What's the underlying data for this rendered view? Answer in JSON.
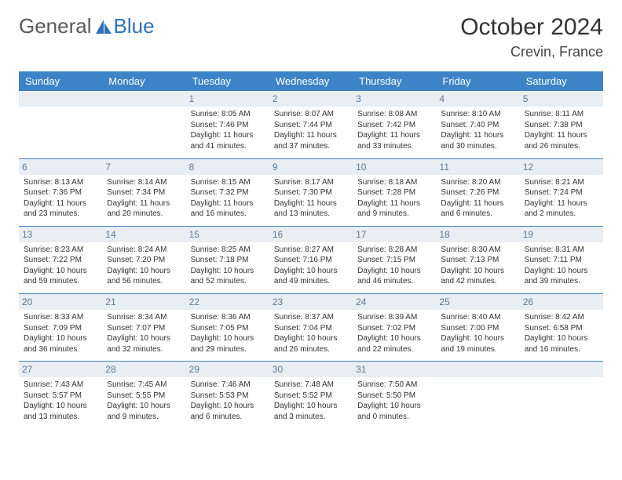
{
  "brand": {
    "part1": "General",
    "part2": "Blue"
  },
  "title": {
    "month": "October 2024",
    "location": "Crevin, France"
  },
  "calendar": {
    "type": "table",
    "header_bg": "#3d84c6",
    "header_fg": "#ffffff",
    "daynum_bg": "#e9eef3",
    "daynum_fg": "#5a7a96",
    "rule_color": "#3d84c6",
    "columns": [
      "Sunday",
      "Monday",
      "Tuesday",
      "Wednesday",
      "Thursday",
      "Friday",
      "Saturday"
    ],
    "weeks": [
      [
        null,
        null,
        {
          "d": "1",
          "sr": "8:05 AM",
          "ss": "7:46 PM",
          "dl": "11 hours and 41 minutes."
        },
        {
          "d": "2",
          "sr": "8:07 AM",
          "ss": "7:44 PM",
          "dl": "11 hours and 37 minutes."
        },
        {
          "d": "3",
          "sr": "8:08 AM",
          "ss": "7:42 PM",
          "dl": "11 hours and 33 minutes."
        },
        {
          "d": "4",
          "sr": "8:10 AM",
          "ss": "7:40 PM",
          "dl": "11 hours and 30 minutes."
        },
        {
          "d": "5",
          "sr": "8:11 AM",
          "ss": "7:38 PM",
          "dl": "11 hours and 26 minutes."
        }
      ],
      [
        {
          "d": "6",
          "sr": "8:13 AM",
          "ss": "7:36 PM",
          "dl": "11 hours and 23 minutes."
        },
        {
          "d": "7",
          "sr": "8:14 AM",
          "ss": "7:34 PM",
          "dl": "11 hours and 20 minutes."
        },
        {
          "d": "8",
          "sr": "8:15 AM",
          "ss": "7:32 PM",
          "dl": "11 hours and 16 minutes."
        },
        {
          "d": "9",
          "sr": "8:17 AM",
          "ss": "7:30 PM",
          "dl": "11 hours and 13 minutes."
        },
        {
          "d": "10",
          "sr": "8:18 AM",
          "ss": "7:28 PM",
          "dl": "11 hours and 9 minutes."
        },
        {
          "d": "11",
          "sr": "8:20 AM",
          "ss": "7:26 PM",
          "dl": "11 hours and 6 minutes."
        },
        {
          "d": "12",
          "sr": "8:21 AM",
          "ss": "7:24 PM",
          "dl": "11 hours and 2 minutes."
        }
      ],
      [
        {
          "d": "13",
          "sr": "8:23 AM",
          "ss": "7:22 PM",
          "dl": "10 hours and 59 minutes."
        },
        {
          "d": "14",
          "sr": "8:24 AM",
          "ss": "7:20 PM",
          "dl": "10 hours and 56 minutes."
        },
        {
          "d": "15",
          "sr": "8:25 AM",
          "ss": "7:18 PM",
          "dl": "10 hours and 52 minutes."
        },
        {
          "d": "16",
          "sr": "8:27 AM",
          "ss": "7:16 PM",
          "dl": "10 hours and 49 minutes."
        },
        {
          "d": "17",
          "sr": "8:28 AM",
          "ss": "7:15 PM",
          "dl": "10 hours and 46 minutes."
        },
        {
          "d": "18",
          "sr": "8:30 AM",
          "ss": "7:13 PM",
          "dl": "10 hours and 42 minutes."
        },
        {
          "d": "19",
          "sr": "8:31 AM",
          "ss": "7:11 PM",
          "dl": "10 hours and 39 minutes."
        }
      ],
      [
        {
          "d": "20",
          "sr": "8:33 AM",
          "ss": "7:09 PM",
          "dl": "10 hours and 36 minutes."
        },
        {
          "d": "21",
          "sr": "8:34 AM",
          "ss": "7:07 PM",
          "dl": "10 hours and 32 minutes."
        },
        {
          "d": "22",
          "sr": "8:36 AM",
          "ss": "7:05 PM",
          "dl": "10 hours and 29 minutes."
        },
        {
          "d": "23",
          "sr": "8:37 AM",
          "ss": "7:04 PM",
          "dl": "10 hours and 26 minutes."
        },
        {
          "d": "24",
          "sr": "8:39 AM",
          "ss": "7:02 PM",
          "dl": "10 hours and 22 minutes."
        },
        {
          "d": "25",
          "sr": "8:40 AM",
          "ss": "7:00 PM",
          "dl": "10 hours and 19 minutes."
        },
        {
          "d": "26",
          "sr": "8:42 AM",
          "ss": "6:58 PM",
          "dl": "10 hours and 16 minutes."
        }
      ],
      [
        {
          "d": "27",
          "sr": "7:43 AM",
          "ss": "5:57 PM",
          "dl": "10 hours and 13 minutes."
        },
        {
          "d": "28",
          "sr": "7:45 AM",
          "ss": "5:55 PM",
          "dl": "10 hours and 9 minutes."
        },
        {
          "d": "29",
          "sr": "7:46 AM",
          "ss": "5:53 PM",
          "dl": "10 hours and 6 minutes."
        },
        {
          "d": "30",
          "sr": "7:48 AM",
          "ss": "5:52 PM",
          "dl": "10 hours and 3 minutes."
        },
        {
          "d": "31",
          "sr": "7:50 AM",
          "ss": "5:50 PM",
          "dl": "10 hours and 0 minutes."
        },
        null,
        null
      ]
    ],
    "labels": {
      "sunrise": "Sunrise: ",
      "sunset": "Sunset: ",
      "daylight": "Daylight: "
    }
  }
}
